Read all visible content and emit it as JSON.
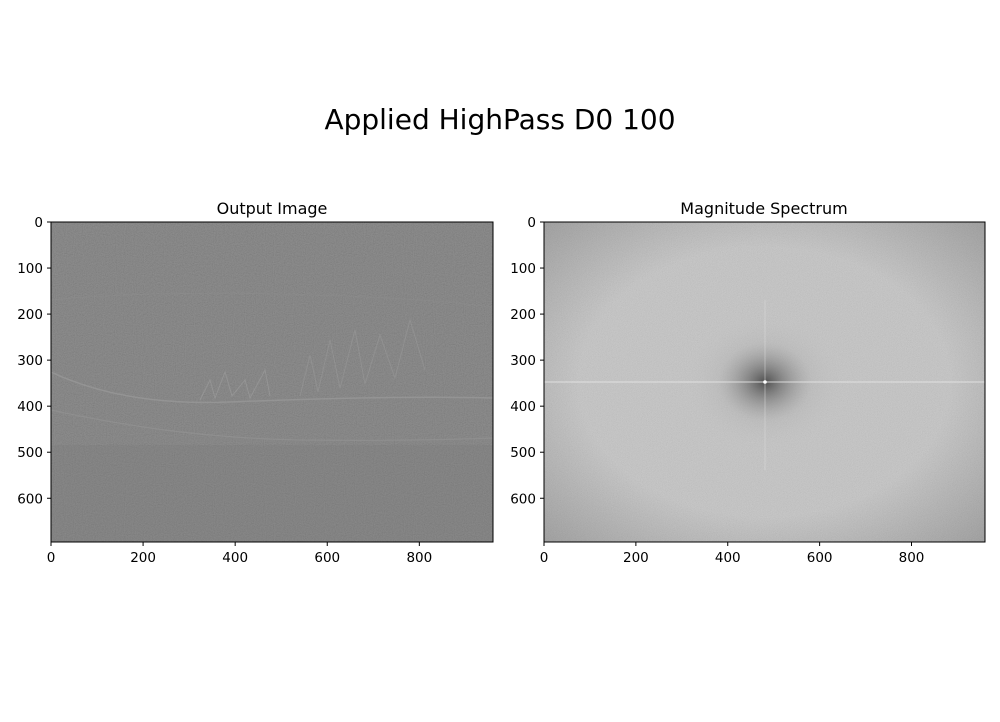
{
  "figure": {
    "suptitle": "Applied HighPass D0 100"
  },
  "chart_data": [
    {
      "type": "image",
      "title": "Output Image",
      "colormap": "gray",
      "content": "high-pass filtered photograph: mid-gray field with faint edge detail, horizon-like edge near y≈390-440",
      "x_range": [
        0,
        960
      ],
      "y_range": [
        0,
        695
      ],
      "y_inverted": true,
      "x_ticks": [
        0,
        200,
        400,
        600,
        800
      ],
      "x_tick_labels": [
        "0",
        "200",
        "400",
        "600",
        "800"
      ],
      "y_ticks": [
        0,
        100,
        200,
        300,
        400,
        500,
        600
      ],
      "y_tick_labels": [
        "0",
        "100",
        "200",
        "300",
        "400",
        "500",
        "600"
      ],
      "xlabel": "",
      "ylabel": ""
    },
    {
      "type": "image",
      "title": "Magnitude Spectrum",
      "colormap": "gray",
      "content": "log magnitude FFT spectrum: light gray noise with dark region around center (480, 347) and bright center point, faint cross lines",
      "center": [
        480,
        347
      ],
      "x_range": [
        0,
        960
      ],
      "y_range": [
        0,
        695
      ],
      "y_inverted": true,
      "x_ticks": [
        0,
        200,
        400,
        600,
        800
      ],
      "x_tick_labels": [
        "0",
        "200",
        "400",
        "600",
        "800"
      ],
      "y_ticks": [
        0,
        100,
        200,
        300,
        400,
        500,
        600
      ],
      "y_tick_labels": [
        "0",
        "100",
        "200",
        "300",
        "400",
        "500",
        "600"
      ],
      "xlabel": "",
      "ylabel": ""
    }
  ]
}
